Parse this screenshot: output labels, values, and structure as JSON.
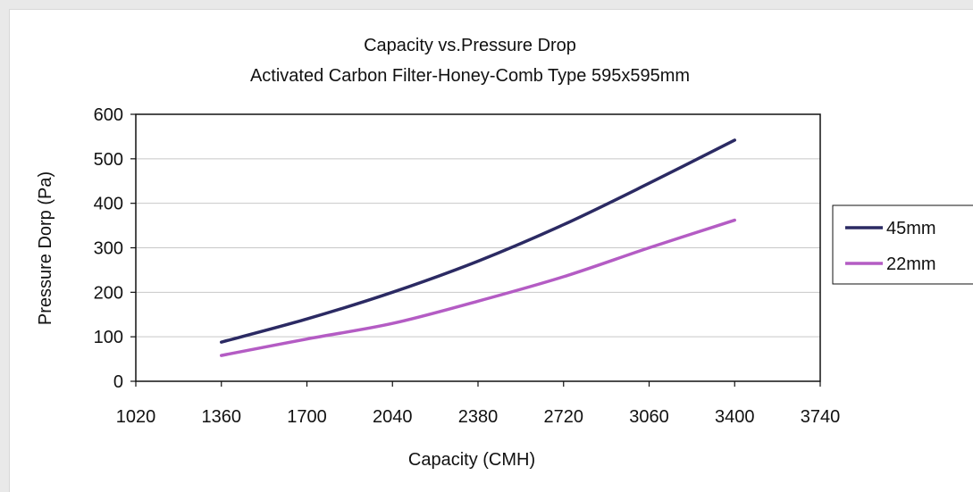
{
  "chart_data": {
    "type": "line",
    "title": "Capacity vs.Pressure Drop",
    "subtitle": "Activated Carbon Filter-Honey-Comb Type 595x595mm",
    "xlabel": "Capacity (CMH)",
    "ylabel": "Pressure Dorp (Pa)",
    "x_ticks": [
      1020,
      1360,
      1700,
      2040,
      2380,
      2720,
      3060,
      3400,
      3740
    ],
    "y_ticks": [
      0,
      100,
      200,
      300,
      400,
      500,
      600
    ],
    "xlim": [
      1020,
      3740
    ],
    "ylim": [
      0,
      600
    ],
    "grid": "horizontal",
    "legend_position": "right",
    "x": [
      1360,
      1700,
      2040,
      2380,
      2720,
      3060,
      3400
    ],
    "series": [
      {
        "name": "45mm",
        "color": "#2b2a63",
        "values": [
          88,
          140,
          200,
          270,
          352,
          445,
          542
        ]
      },
      {
        "name": "22mm",
        "color": "#b45cc4",
        "values": [
          58,
          95,
          130,
          180,
          235,
          300,
          362
        ]
      }
    ]
  }
}
